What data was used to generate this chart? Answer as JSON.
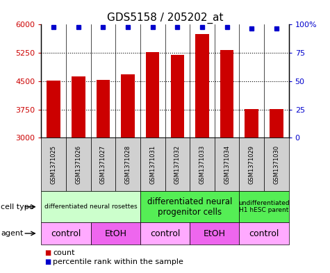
{
  "title": "GDS5158 / 205202_at",
  "samples": [
    "GSM1371025",
    "GSM1371026",
    "GSM1371027",
    "GSM1371028",
    "GSM1371031",
    "GSM1371032",
    "GSM1371033",
    "GSM1371034",
    "GSM1371029",
    "GSM1371030"
  ],
  "counts": [
    4510,
    4630,
    4530,
    4680,
    5270,
    5190,
    5750,
    5330,
    3760,
    3760
  ],
  "percentiles": [
    97.5,
    97.5,
    97.5,
    97.5,
    97.8,
    97.8,
    97.8,
    97.8,
    96.5,
    96.5
  ],
  "ylim_left": [
    3000,
    6000
  ],
  "ylim_right": [
    0,
    100
  ],
  "yticks_left": [
    3000,
    3750,
    4500,
    5250,
    6000
  ],
  "yticks_right": [
    0,
    25,
    50,
    75,
    100
  ],
  "bar_color": "#cc0000",
  "dot_color": "#0000cc",
  "bar_width": 0.55,
  "cell_type_groups": [
    {
      "label": "differentiated neural rosettes",
      "start": 0,
      "end": 4,
      "color": "#ccffcc",
      "fontsize": 6.5
    },
    {
      "label": "differentiated neural\nprogenitor cells",
      "start": 4,
      "end": 8,
      "color": "#55ee55",
      "fontsize": 8.5
    },
    {
      "label": "undifferentiated\nH1 hESC parent",
      "start": 8,
      "end": 10,
      "color": "#55ee55",
      "fontsize": 6.5
    }
  ],
  "agent_groups": [
    {
      "label": "control",
      "start": 0,
      "end": 2,
      "color": "#ffaaff"
    },
    {
      "label": "EtOH",
      "start": 2,
      "end": 4,
      "color": "#ee66ee"
    },
    {
      "label": "control",
      "start": 4,
      "end": 6,
      "color": "#ffaaff"
    },
    {
      "label": "EtOH",
      "start": 6,
      "end": 8,
      "color": "#ee66ee"
    },
    {
      "label": "control",
      "start": 8,
      "end": 10,
      "color": "#ffaaff"
    }
  ],
  "legend_count_color": "#cc0000",
  "legend_dot_color": "#0000cc",
  "tick_fontsize": 8,
  "title_fontsize": 11,
  "sample_label_fontsize": 6,
  "agent_fontsize": 9
}
